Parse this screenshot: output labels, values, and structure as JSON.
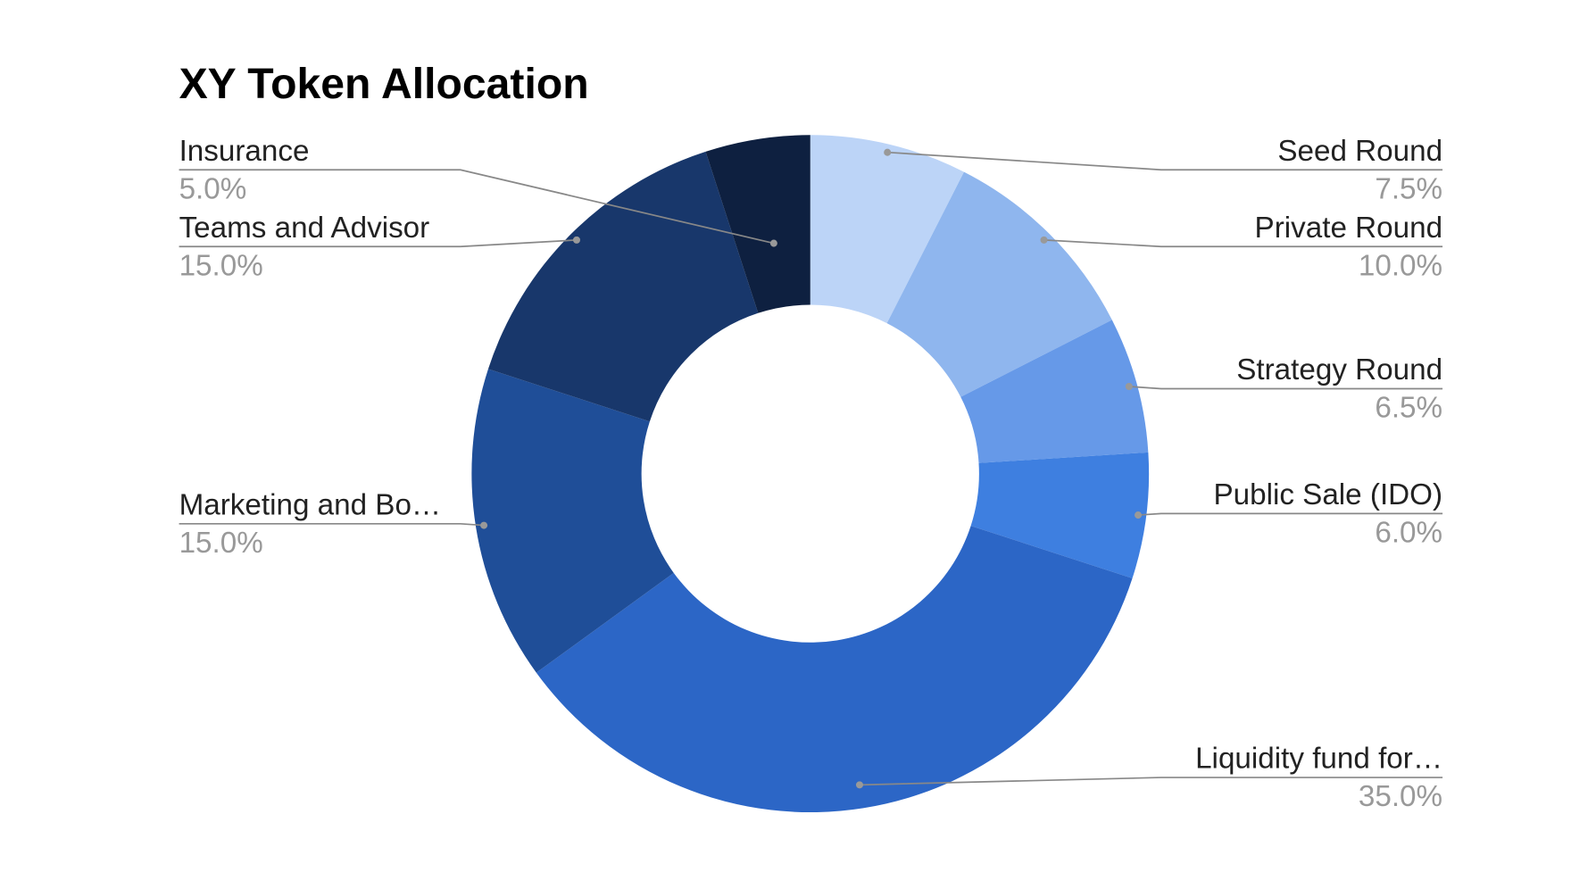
{
  "chart_data": {
    "type": "pie",
    "donut": true,
    "title": "XY Token Allocation",
    "slices": [
      {
        "label": "Seed Round",
        "display_label": "Seed Round",
        "value": 7.5,
        "pct_label": "7.5%",
        "color": "#bcd4f7",
        "side": "right"
      },
      {
        "label": "Private Round",
        "display_label": "Private Round",
        "value": 10.0,
        "pct_label": "10.0%",
        "color": "#8fb6ee",
        "side": "right"
      },
      {
        "label": "Strategy Round",
        "display_label": "Strategy Round",
        "value": 6.5,
        "pct_label": "6.5%",
        "color": "#6699e8",
        "side": "right"
      },
      {
        "label": "Public Sale (IDO)",
        "display_label": "Public Sale (IDO)",
        "value": 6.0,
        "pct_label": "6.0%",
        "color": "#3e7fe0",
        "side": "right"
      },
      {
        "label": "Liquidity fund for…",
        "display_label": "Liquidity fund for…",
        "value": 35.0,
        "pct_label": "35.0%",
        "color": "#2c66c6",
        "side": "right"
      },
      {
        "label": "Marketing and Bo…",
        "display_label": "Marketing and Bo…",
        "value": 15.0,
        "pct_label": "15.0%",
        "color": "#1f4e98",
        "side": "left"
      },
      {
        "label": "Teams and Advisor",
        "display_label": "Teams and Advisor",
        "value": 15.0,
        "pct_label": "15.0%",
        "color": "#18376b",
        "side": "left"
      },
      {
        "label": "Insurance",
        "display_label": "Insurance",
        "value": 5.0,
        "pct_label": "5.0%",
        "color": "#0e2040",
        "side": "left"
      }
    ],
    "legend": "labels with leader lines"
  }
}
